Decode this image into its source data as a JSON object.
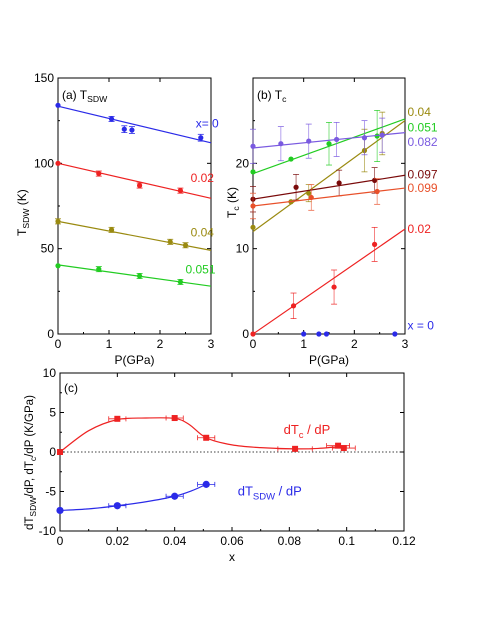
{
  "chart_data": [
    {
      "type": "scatter",
      "panel_label": "(a) T",
      "panel_label_sub": "SDW",
      "ylabel": "T",
      "ylabel_sub": "SDW",
      "ylabel_unit": " (K)",
      "xlabel": "P(GPa)",
      "xlim": [
        0,
        3
      ],
      "ylim": [
        0,
        150
      ],
      "xticks": [
        0,
        1,
        2,
        3
      ],
      "yticks": [
        0,
        50,
        100,
        150
      ],
      "series": [
        {
          "name": "x= 0",
          "color": "#2a2ae8",
          "x": [
            0,
            1.05,
            1.3,
            1.45,
            2.8
          ],
          "y": [
            134,
            126,
            120,
            119.5,
            115
          ],
          "err": [
            0,
            1.5,
            2,
            2,
            2
          ],
          "fit": [
            [
              0,
              133.5
            ],
            [
              3,
              112
            ]
          ],
          "label_pos": [
            2.7,
            121
          ]
        },
        {
          "name": "0.02",
          "color": "#ee2222",
          "x": [
            0,
            0.8,
            1.6,
            2.4
          ],
          "y": [
            100,
            94,
            87,
            84
          ],
          "err": [
            0,
            1.5,
            1.5,
            1.5
          ],
          "fit": [
            [
              0,
              100
            ],
            [
              3,
              79.5
            ]
          ],
          "label_pos": [
            2.6,
            89
          ]
        },
        {
          "name": "0.04",
          "color": "#9a8a10",
          "x": [
            0,
            1.05,
            2.2,
            2.5
          ],
          "y": [
            66,
            61,
            54,
            52
          ],
          "err": [
            1.5,
            1.5,
            1.5,
            1.5
          ],
          "fit": [
            [
              0,
              66
            ],
            [
              3,
              49
            ]
          ],
          "label_pos": [
            2.6,
            57
          ]
        },
        {
          "name": "0.051",
          "color": "#22cc22",
          "x": [
            0,
            0.8,
            1.6,
            2.4
          ],
          "y": [
            40,
            38,
            34,
            30.5
          ],
          "err": [
            0,
            1.5,
            1.5,
            1.5
          ],
          "fit": [
            [
              0,
              40.5
            ],
            [
              3,
              28
            ]
          ],
          "label_pos": [
            2.5,
            35.5
          ]
        }
      ]
    },
    {
      "type": "scatter",
      "panel_label": "(b) T",
      "panel_label_sub": "c",
      "ylabel": "T",
      "ylabel_sub": "c",
      "ylabel_unit": " (K)",
      "xlabel": "P(GPa)",
      "xlim": [
        0,
        3
      ],
      "ylim": [
        0,
        30
      ],
      "xticks": [
        0,
        1,
        2,
        3
      ],
      "yticks": [
        0,
        10,
        20
      ],
      "series": [
        {
          "name": "0.04",
          "color": "#9a8a10",
          "x": [
            0,
            0.75,
            1.1,
            2.2,
            2.55
          ],
          "y": [
            12.5,
            15.5,
            16.5,
            21.5,
            23.5
          ],
          "err": [
            0,
            0,
            1,
            2.5,
            2.5
          ],
          "fit": [
            [
              0,
              12
            ],
            [
              3,
              25
            ]
          ],
          "label_pos": [
            3.05,
            26
          ]
        },
        {
          "name": "0.051",
          "color": "#22cc22",
          "x": [
            0,
            0.75,
            1.5,
            2.45
          ],
          "y": [
            19,
            20.5,
            22.3,
            23.2
          ],
          "err": [
            0,
            0,
            2.5,
            3
          ],
          "fit": [
            [
              0,
              18.8
            ],
            [
              3,
              25.2
            ]
          ],
          "label_pos": [
            3.05,
            24.2
          ]
        },
        {
          "name": "0.082",
          "color": "#7a5ae0",
          "x": [
            0,
            0.55,
            1.1,
            1.65,
            2.2,
            2.55
          ],
          "y": [
            22,
            22.3,
            22.6,
            22.8,
            23,
            23.3
          ],
          "err": [
            2,
            2,
            2,
            2,
            2,
            2
          ],
          "fit": [
            [
              0,
              21.8
            ],
            [
              3,
              23.6
            ]
          ],
          "label_pos": [
            3.05,
            22.5
          ]
        },
        {
          "name": "0.097",
          "color": "#7a0a0a",
          "x": [
            0,
            0.85,
            1.7,
            2.4
          ],
          "y": [
            15.8,
            17.2,
            17.7,
            18
          ],
          "err": [
            1.5,
            1.5,
            1.5,
            1.5
          ],
          "fit": [
            [
              0,
              15.8
            ],
            [
              3,
              18.6
            ]
          ],
          "label_pos": [
            3.05,
            18.7
          ]
        },
        {
          "name": "0.099",
          "color": "#e8502a",
          "x": [
            0,
            1.15,
            2.45
          ],
          "y": [
            15,
            16,
            16.7
          ],
          "err": [
            1.5,
            1.5,
            1.5
          ],
          "fit": [
            [
              0,
              15
            ],
            [
              3,
              17.1
            ]
          ],
          "label_pos": [
            3.05,
            17.1
          ]
        },
        {
          "name": "0.02",
          "color": "#ee2222",
          "x": [
            0,
            0.8,
            1.6,
            2.4
          ],
          "y": [
            0,
            3.3,
            5.5,
            10.5
          ],
          "err": [
            0,
            1.5,
            2,
            2
          ],
          "fit": [
            [
              0,
              0
            ],
            [
              3,
              12.3
            ]
          ],
          "label_pos": [
            3.05,
            12.3
          ]
        },
        {
          "name": "x = 0",
          "color": "#2a2ae8",
          "x": [
            1.0,
            1.3,
            1.45,
            2.8
          ],
          "y": [
            0,
            0,
            0,
            0
          ],
          "err": [
            0,
            0,
            0,
            0
          ],
          "fit": null,
          "label_pos": [
            3.05,
            1
          ]
        }
      ]
    },
    {
      "type": "line",
      "panel_label": "(c)",
      "ylabel": "dT",
      "ylabel_sub1": "SDW",
      "ylabel_mid": "/dP, dT",
      "ylabel_sub2": "c",
      "ylabel_end": "/dP (K/GPa)",
      "xlabel": "x",
      "xlim": [
        0,
        0.12
      ],
      "ylim": [
        -10,
        10
      ],
      "xticks": [
        "0",
        "0.02",
        "0.04",
        "0.06",
        "0.08",
        "0.1",
        "0.12"
      ],
      "xtick_values": [
        0,
        0.02,
        0.04,
        0.06,
        0.08,
        0.1,
        0.12
      ],
      "yticks": [
        -10,
        -5,
        0,
        5,
        10
      ],
      "series": [
        {
          "name": "dT / dP",
          "name_main": "dT",
          "name_sub": "c",
          "name_end": " / dP",
          "color": "#ee2222",
          "marker": "square",
          "x": [
            0,
            0.02,
            0.04,
            0.051,
            0.082,
            0.097,
            0.099
          ],
          "y": [
            0,
            4.2,
            4.3,
            1.8,
            0.4,
            0.8,
            0.5
          ],
          "xerr": [
            0,
            0.003,
            0.003,
            0.003,
            0.006,
            0.004,
            0.004
          ],
          "curve": [
            [
              0,
              0
            ],
            [
              0.01,
              2.7
            ],
            [
              0.02,
              4.1
            ],
            [
              0.03,
              4.3
            ],
            [
              0.04,
              4.25
            ],
            [
              0.045,
              3.5
            ],
            [
              0.051,
              1.8
            ],
            [
              0.06,
              0.9
            ],
            [
              0.07,
              0.55
            ],
            [
              0.082,
              0.4
            ],
            [
              0.09,
              0.45
            ],
            [
              0.097,
              0.65
            ],
            [
              0.1,
              0.6
            ]
          ],
          "label_pos": [
            0.078,
            2.3
          ]
        },
        {
          "name": "dT / dP",
          "name_main": "dT",
          "name_sub": "SDW",
          "name_end": " / dP",
          "color": "#2a2ae8",
          "marker": "circle",
          "x": [
            0,
            0.02,
            0.04,
            0.051
          ],
          "y": [
            -7.4,
            -6.8,
            -5.6,
            -4.1
          ],
          "xerr": [
            0,
            0.003,
            0.003,
            0.003
          ],
          "curve": [
            [
              0,
              -7.4
            ],
            [
              0.01,
              -7.2
            ],
            [
              0.02,
              -6.8
            ],
            [
              0.03,
              -6.3
            ],
            [
              0.04,
              -5.6
            ],
            [
              0.046,
              -4.9
            ],
            [
              0.051,
              -4.1
            ]
          ],
          "label_pos": [
            0.062,
            -5.5
          ]
        }
      ]
    }
  ]
}
